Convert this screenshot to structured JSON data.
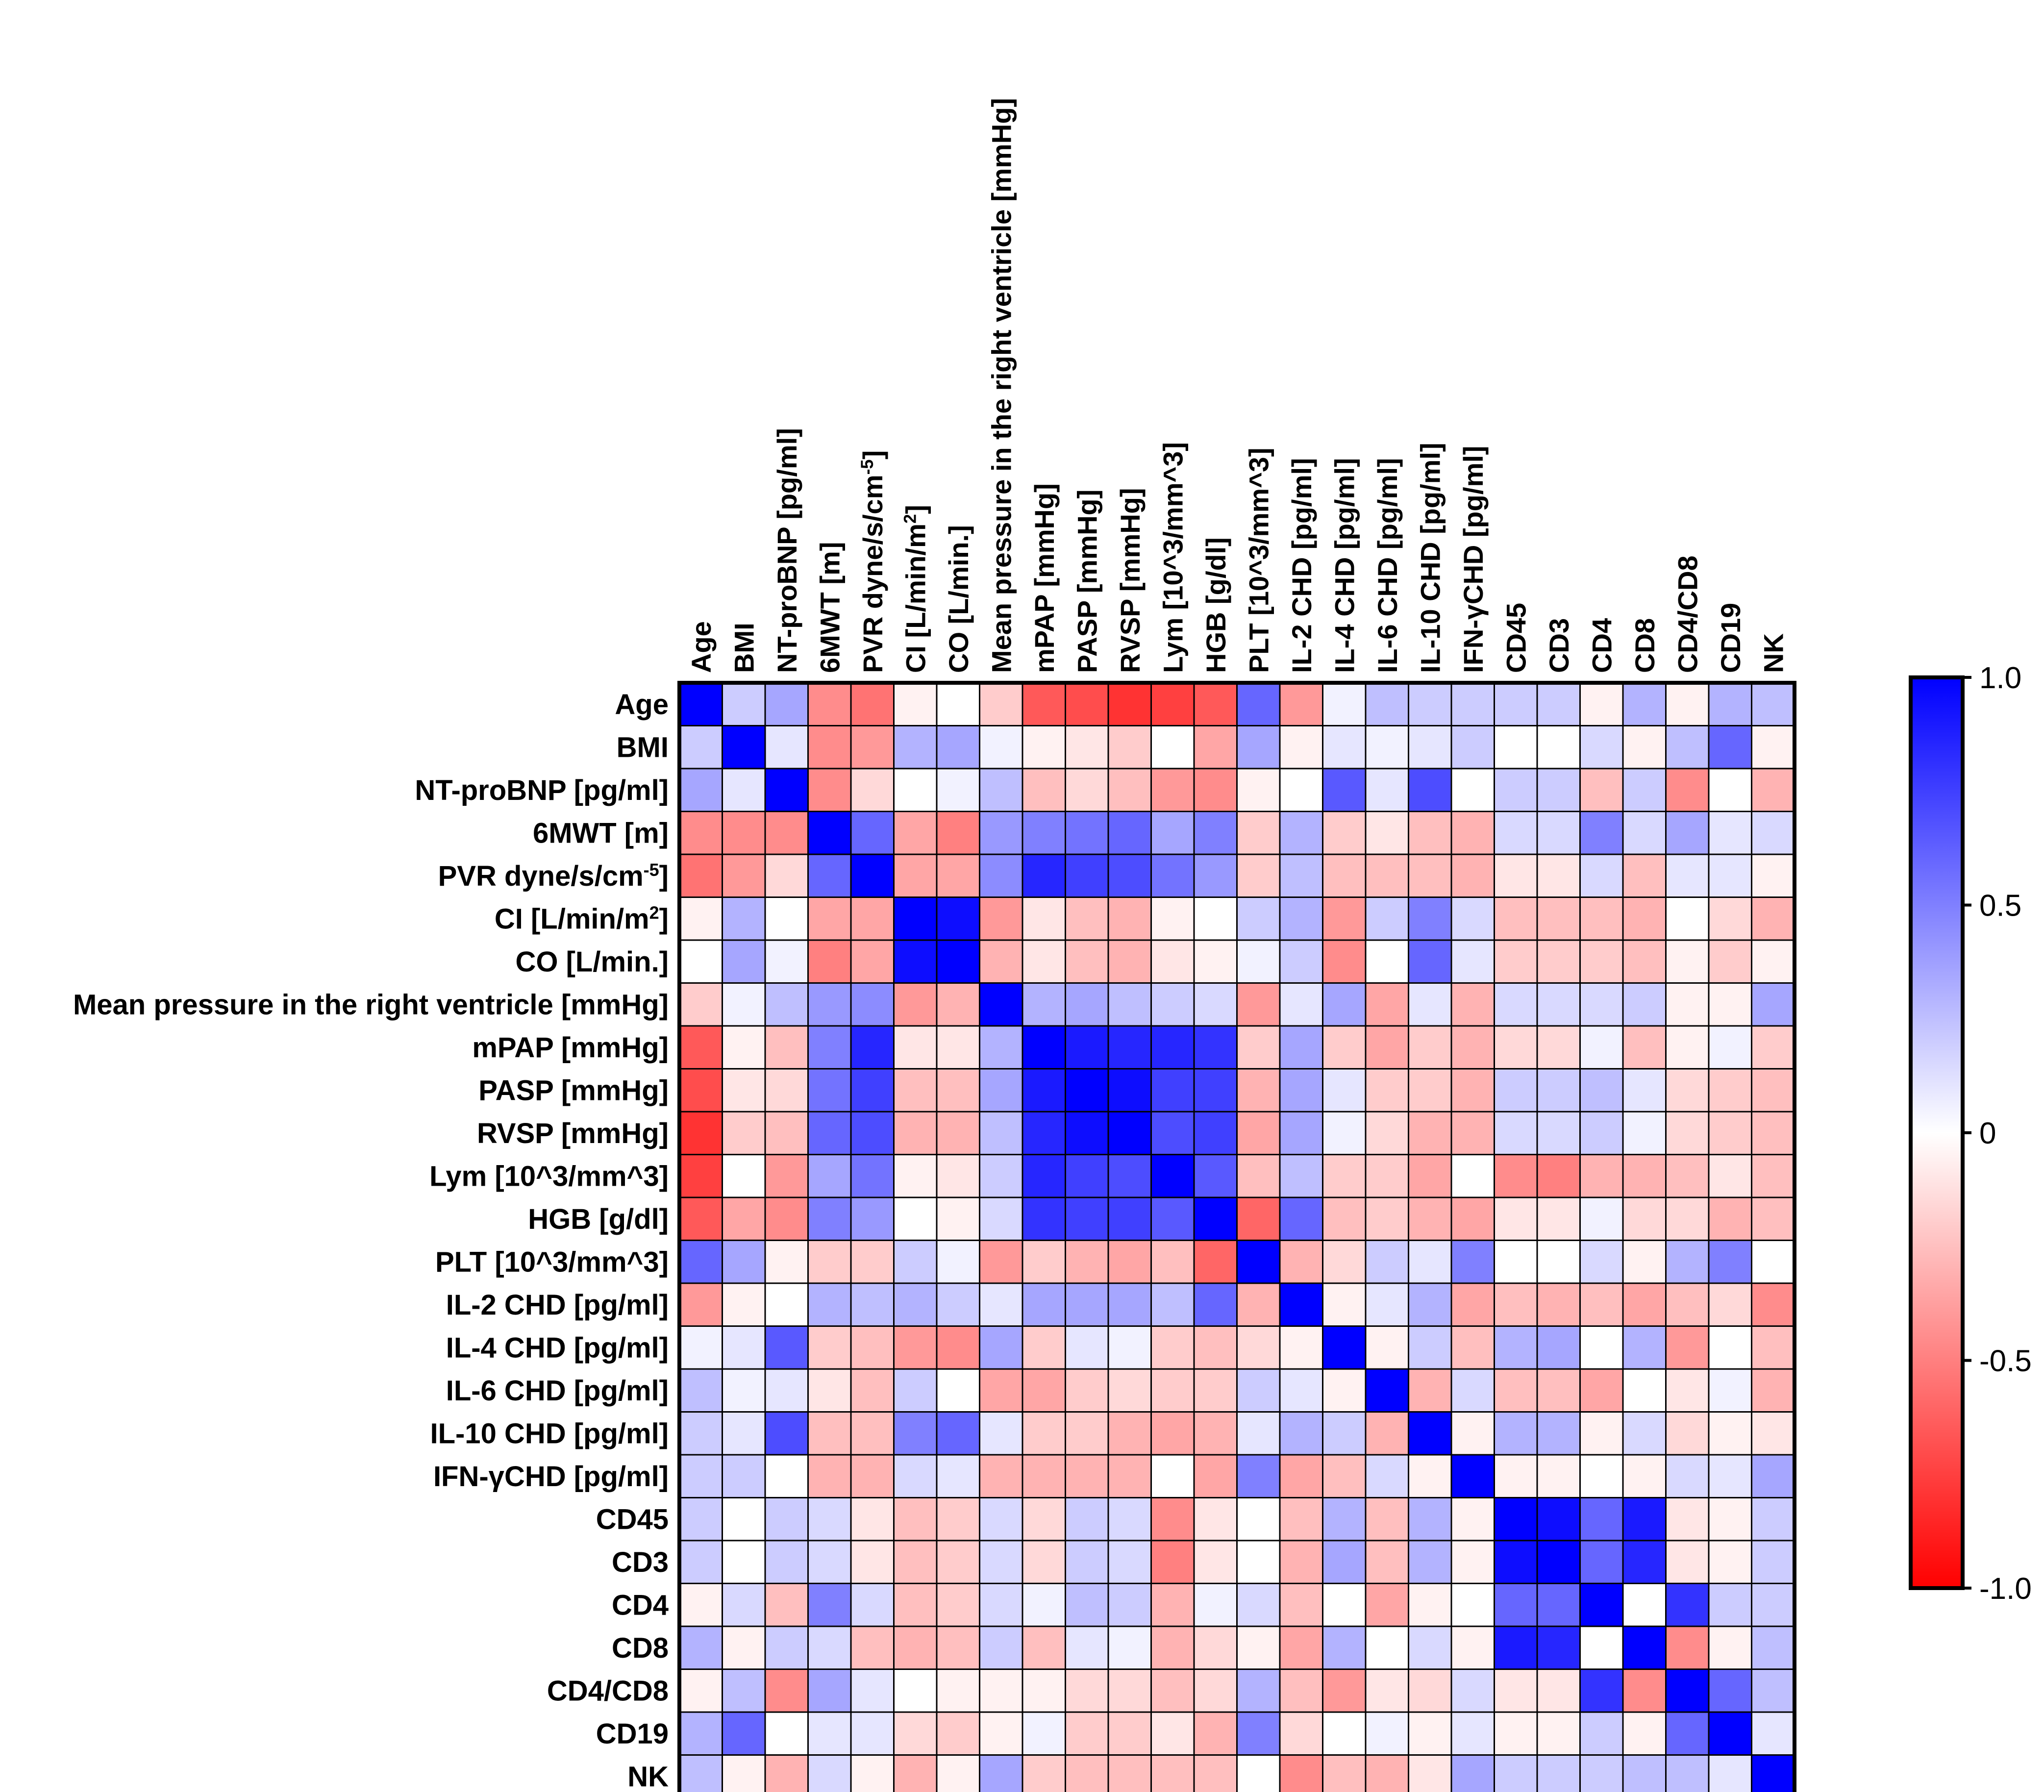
{
  "chart_data": {
    "type": "heatmap",
    "labels": [
      "Age",
      "BMI",
      "NT-proBNP [pg/ml]",
      "6MWT [m]",
      "PVR dyne/s/cm-5]",
      "CI [L/min/m2]",
      "CO [L/min.]",
      "Mean pressure in the right ventricle [mmHg]",
      "mPAP [mmHg]",
      "PASP [mmHg]",
      "RVSP [mmHg]",
      "Lym [10^3/mm^3]",
      "HGB [g/dl]",
      "PLT [10^3/mm^3]",
      "IL-2 CHD [pg/ml]",
      "IL-4 CHD [pg/ml]",
      "IL-6 CHD [pg/ml]",
      "IL-10 CHD [pg/ml]",
      "IFN-γCHD [pg/ml]",
      "CD45",
      "CD3",
      "CD4",
      "CD8",
      "CD4/CD8",
      "CD19",
      "NK"
    ],
    "label_parts": {
      "4": {
        "main": "PVR dyne/s/cm",
        "sup": "-5",
        "tail": "]"
      },
      "5": {
        "main": "CI [L/min/m",
        "sup": "2",
        "tail": "]"
      }
    },
    "values": [
      [
        1.0,
        0.2,
        0.35,
        -0.45,
        -0.55,
        -0.05,
        0.0,
        -0.2,
        -0.65,
        -0.7,
        -0.8,
        -0.75,
        -0.65,
        0.6,
        -0.4,
        0.05,
        0.25,
        0.2,
        0.2,
        0.2,
        0.2,
        -0.05,
        0.3,
        -0.05,
        0.3,
        0.25
      ],
      [
        0.2,
        1.0,
        0.1,
        -0.45,
        -0.4,
        0.3,
        0.35,
        0.05,
        -0.05,
        -0.1,
        -0.2,
        0.0,
        -0.35,
        0.35,
        -0.05,
        0.1,
        0.05,
        0.1,
        0.2,
        0.0,
        0.0,
        0.15,
        -0.05,
        0.25,
        0.6,
        -0.05
      ],
      [
        0.35,
        0.1,
        1.0,
        -0.45,
        -0.15,
        0.0,
        0.05,
        0.25,
        -0.25,
        -0.15,
        -0.25,
        -0.4,
        -0.45,
        -0.05,
        0.0,
        0.65,
        0.1,
        0.7,
        0.0,
        0.2,
        0.2,
        -0.25,
        0.2,
        -0.45,
        0.0,
        -0.3
      ],
      [
        -0.45,
        -0.45,
        -0.45,
        1.0,
        0.6,
        -0.35,
        -0.5,
        0.4,
        0.5,
        0.55,
        0.6,
        0.35,
        0.5,
        -0.2,
        0.3,
        -0.2,
        -0.1,
        -0.25,
        -0.3,
        0.15,
        0.15,
        0.5,
        0.15,
        0.35,
        0.1,
        0.15
      ],
      [
        -0.55,
        -0.4,
        -0.15,
        0.6,
        1.0,
        -0.35,
        -0.35,
        0.45,
        0.85,
        0.75,
        0.7,
        0.55,
        0.4,
        -0.2,
        0.25,
        -0.25,
        -0.25,
        -0.25,
        -0.3,
        -0.1,
        -0.1,
        0.15,
        -0.25,
        0.1,
        0.1,
        -0.05
      ],
      [
        -0.05,
        0.3,
        0.0,
        -0.35,
        -0.35,
        1.0,
        0.95,
        -0.4,
        -0.1,
        -0.25,
        -0.3,
        -0.05,
        0.0,
        0.2,
        0.3,
        -0.4,
        0.2,
        0.5,
        0.15,
        -0.25,
        -0.25,
        -0.25,
        -0.3,
        0.0,
        -0.15,
        -0.3
      ],
      [
        0.0,
        0.35,
        0.05,
        -0.5,
        -0.35,
        0.95,
        1.0,
        -0.3,
        -0.1,
        -0.25,
        -0.3,
        -0.1,
        -0.05,
        0.05,
        0.2,
        -0.45,
        0.0,
        0.6,
        0.1,
        -0.2,
        -0.2,
        -0.2,
        -0.25,
        -0.05,
        -0.2,
        -0.05
      ],
      [
        -0.2,
        0.05,
        0.25,
        0.4,
        0.45,
        -0.4,
        -0.3,
        1.0,
        0.3,
        0.35,
        0.25,
        0.2,
        0.15,
        -0.4,
        0.1,
        0.35,
        -0.35,
        0.1,
        -0.3,
        0.15,
        0.15,
        0.15,
        0.2,
        -0.05,
        -0.05,
        0.35
      ],
      [
        -0.65,
        -0.05,
        -0.25,
        0.5,
        0.85,
        -0.1,
        -0.1,
        0.3,
        1.0,
        0.9,
        0.85,
        0.85,
        0.8,
        -0.2,
        0.35,
        -0.2,
        -0.35,
        -0.2,
        -0.3,
        -0.15,
        -0.15,
        0.05,
        -0.25,
        -0.05,
        0.05,
        -0.2
      ],
      [
        -0.7,
        -0.1,
        -0.15,
        0.55,
        0.75,
        -0.25,
        -0.25,
        0.35,
        0.9,
        1.0,
        0.95,
        0.75,
        0.75,
        -0.3,
        0.35,
        0.1,
        -0.2,
        -0.2,
        -0.3,
        0.2,
        0.2,
        0.25,
        0.1,
        -0.15,
        -0.2,
        -0.25
      ],
      [
        -0.8,
        -0.2,
        -0.25,
        0.6,
        0.7,
        -0.3,
        -0.3,
        0.25,
        0.85,
        0.95,
        1.0,
        0.7,
        0.75,
        -0.35,
        0.35,
        0.05,
        -0.15,
        -0.3,
        -0.3,
        0.15,
        0.15,
        0.2,
        0.05,
        -0.15,
        -0.2,
        -0.25
      ],
      [
        -0.75,
        0.0,
        -0.4,
        0.35,
        0.55,
        -0.05,
        -0.1,
        0.2,
        0.85,
        0.75,
        0.7,
        1.0,
        0.65,
        -0.25,
        0.25,
        -0.2,
        -0.2,
        -0.35,
        0.0,
        -0.45,
        -0.5,
        -0.3,
        -0.3,
        -0.25,
        -0.1,
        -0.25
      ],
      [
        -0.65,
        -0.35,
        -0.45,
        0.5,
        0.4,
        0.0,
        -0.05,
        0.15,
        0.8,
        0.75,
        0.75,
        0.65,
        1.0,
        -0.6,
        0.6,
        -0.25,
        -0.2,
        -0.3,
        -0.35,
        -0.1,
        -0.1,
        0.05,
        -0.15,
        -0.15,
        -0.3,
        -0.25
      ],
      [
        0.6,
        0.35,
        -0.05,
        -0.2,
        -0.2,
        0.2,
        0.05,
        -0.4,
        -0.2,
        -0.3,
        -0.35,
        -0.25,
        -0.6,
        1.0,
        -0.3,
        -0.15,
        0.2,
        0.1,
        0.5,
        0.0,
        0.0,
        0.15,
        -0.05,
        0.3,
        0.5,
        0.0
      ],
      [
        -0.4,
        -0.05,
        0.0,
        0.3,
        0.25,
        0.3,
        0.2,
        0.1,
        0.35,
        0.35,
        0.35,
        0.25,
        0.6,
        -0.3,
        1.0,
        -0.05,
        0.1,
        0.3,
        -0.35,
        -0.25,
        -0.3,
        -0.25,
        -0.35,
        -0.25,
        -0.15,
        -0.45
      ],
      [
        0.05,
        0.1,
        0.65,
        -0.2,
        -0.25,
        -0.4,
        -0.45,
        0.35,
        -0.2,
        0.1,
        0.05,
        -0.2,
        -0.25,
        -0.15,
        -0.05,
        1.0,
        -0.05,
        0.2,
        -0.25,
        0.3,
        0.35,
        0.0,
        0.3,
        -0.4,
        0.0,
        -0.25
      ],
      [
        0.25,
        0.05,
        0.1,
        -0.1,
        -0.25,
        0.2,
        0.0,
        -0.35,
        -0.35,
        -0.2,
        -0.15,
        -0.2,
        -0.2,
        0.2,
        0.1,
        -0.05,
        1.0,
        -0.3,
        0.15,
        -0.25,
        -0.25,
        -0.35,
        0.0,
        -0.1,
        0.05,
        -0.3
      ],
      [
        0.2,
        0.1,
        0.7,
        -0.25,
        -0.25,
        0.5,
        0.6,
        0.1,
        -0.2,
        -0.2,
        -0.3,
        -0.35,
        -0.3,
        0.1,
        0.3,
        0.2,
        -0.3,
        1.0,
        -0.05,
        0.3,
        0.3,
        -0.05,
        0.15,
        -0.15,
        -0.05,
        -0.1
      ],
      [
        0.2,
        0.2,
        0.0,
        -0.3,
        -0.3,
        0.15,
        0.1,
        -0.3,
        -0.3,
        -0.3,
        -0.3,
        0.0,
        -0.35,
        0.5,
        -0.35,
        -0.25,
        0.15,
        -0.05,
        1.0,
        -0.05,
        -0.05,
        0.0,
        -0.05,
        0.15,
        0.1,
        0.35
      ],
      [
        0.2,
        0.0,
        0.2,
        0.15,
        -0.1,
        -0.25,
        -0.2,
        0.15,
        -0.15,
        0.2,
        0.15,
        -0.45,
        -0.1,
        0.0,
        -0.25,
        0.3,
        -0.25,
        0.3,
        -0.05,
        1.0,
        0.95,
        0.6,
        0.9,
        -0.1,
        -0.05,
        0.2
      ],
      [
        0.2,
        0.0,
        0.2,
        0.15,
        -0.1,
        -0.25,
        -0.2,
        0.15,
        -0.15,
        0.2,
        0.15,
        -0.5,
        -0.1,
        0.0,
        -0.3,
        0.35,
        -0.25,
        0.3,
        -0.05,
        0.95,
        1.0,
        0.6,
        0.85,
        -0.1,
        -0.05,
        0.2
      ],
      [
        -0.05,
        0.15,
        -0.25,
        0.5,
        0.15,
        -0.25,
        -0.2,
        0.15,
        0.05,
        0.25,
        0.2,
        -0.3,
        0.05,
        0.15,
        -0.25,
        0.0,
        -0.35,
        -0.05,
        0.0,
        0.6,
        0.6,
        1.0,
        0.0,
        0.8,
        0.2,
        0.2
      ],
      [
        0.3,
        -0.05,
        0.2,
        0.15,
        -0.25,
        -0.3,
        -0.25,
        0.2,
        -0.25,
        0.1,
        0.05,
        -0.3,
        -0.15,
        -0.05,
        -0.35,
        0.3,
        0.0,
        0.15,
        -0.05,
        0.9,
        0.85,
        0.0,
        1.0,
        -0.45,
        -0.05,
        0.25
      ],
      [
        -0.05,
        0.25,
        -0.45,
        0.35,
        0.1,
        0.0,
        -0.05,
        -0.05,
        -0.05,
        -0.15,
        -0.15,
        -0.25,
        -0.15,
        0.3,
        -0.25,
        -0.4,
        -0.1,
        -0.15,
        0.15,
        -0.1,
        -0.1,
        0.8,
        -0.45,
        1.0,
        0.6,
        0.25
      ],
      [
        0.3,
        0.6,
        0.0,
        0.1,
        0.1,
        -0.15,
        -0.2,
        -0.05,
        0.05,
        -0.2,
        -0.2,
        -0.1,
        -0.3,
        0.5,
        -0.15,
        0.0,
        0.05,
        -0.05,
        0.1,
        -0.05,
        -0.05,
        0.2,
        -0.05,
        0.6,
        1.0,
        0.1
      ],
      [
        0.25,
        -0.05,
        -0.3,
        0.15,
        -0.05,
        -0.3,
        -0.05,
        0.35,
        -0.2,
        -0.25,
        -0.25,
        -0.25,
        -0.25,
        0.0,
        -0.45,
        -0.25,
        -0.3,
        -0.1,
        0.35,
        0.2,
        0.2,
        0.2,
        0.25,
        0.25,
        0.1,
        1.0
      ]
    ],
    "value_range": [
      -1.0,
      1.0
    ],
    "colorbar_ticks": [
      "1.0",
      "0.5",
      "0",
      "-0.5",
      "-1.0"
    ],
    "colorbar_tick_values": [
      1.0,
      0.5,
      0,
      -0.5,
      -1.0
    ],
    "colormap": {
      "low": "#ff0000",
      "mid": "#ffffff",
      "high": "#0000ff"
    },
    "x_axis_position": "top",
    "legend_position": "right"
  }
}
